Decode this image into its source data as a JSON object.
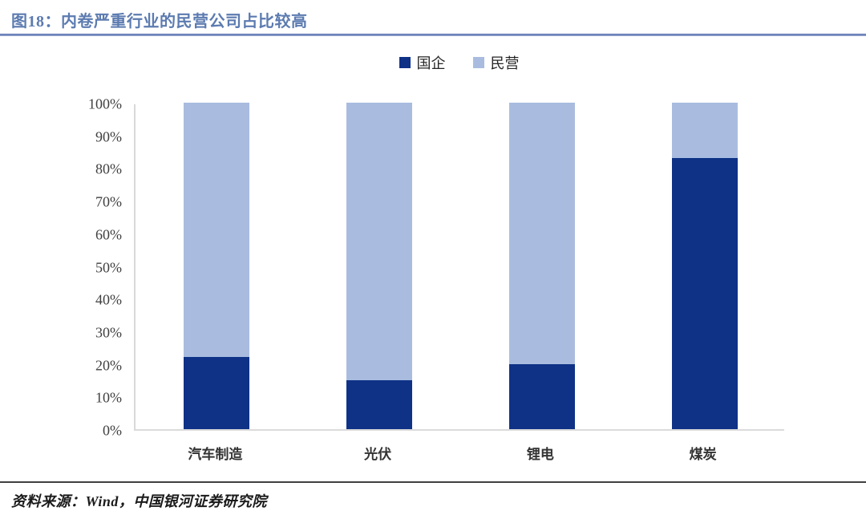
{
  "header": {
    "title": "图18：内卷严重行业的民营公司占比较高"
  },
  "footer": {
    "source": "资料来源：Wind，中国银河证券研究院"
  },
  "colors": {
    "title_blue": "#5C7BB0",
    "rule_blue": "#8296C6",
    "soe_dark_blue": "#0F3287",
    "private_light_blue": "#A9BCE0",
    "axis_gray": "#D9D9D9",
    "tick_text_gray": "#404040"
  },
  "chart_data": {
    "type": "bar",
    "stacked": true,
    "grid": false,
    "legend_position": "top",
    "title": "图18：内卷严重行业的民营公司占比较高",
    "xlabel": "",
    "ylabel": "",
    "ylim": [
      0,
      100
    ],
    "yticks": [
      "0%",
      "10%",
      "20%",
      "30%",
      "40%",
      "50%",
      "60%",
      "70%",
      "80%",
      "90%",
      "100%"
    ],
    "categories": [
      "汽车制造",
      "光伏",
      "锂电",
      "煤炭"
    ],
    "series": [
      {
        "name": "国企",
        "color": "#0F3287",
        "values": [
          22,
          15,
          20,
          83
        ]
      },
      {
        "name": "民营",
        "color": "#A9BCE0",
        "values": [
          78,
          85,
          80,
          17
        ]
      }
    ]
  }
}
